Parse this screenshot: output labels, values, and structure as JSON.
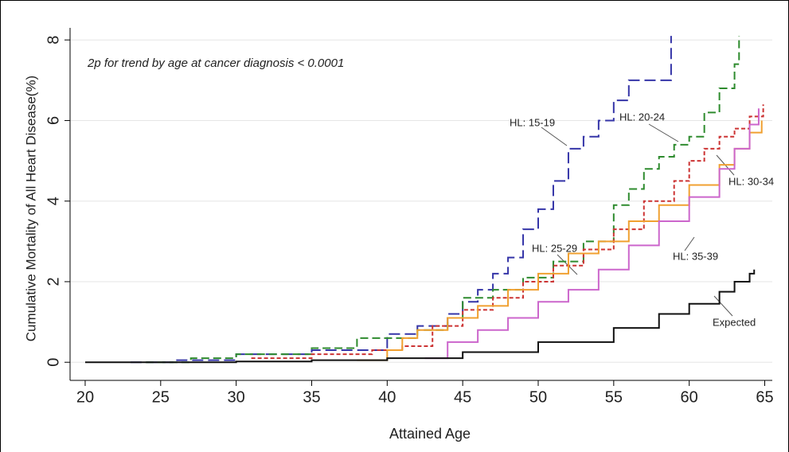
{
  "chart_data": {
    "type": "step",
    "y_label": "Cumulative Mortality of All Heart Disease(%)",
    "x_label": "Attained Age",
    "annotation": "2p for trend by age at cancer diagnosis < 0.0001",
    "xlim": [
      19,
      65.5
    ],
    "ylim": [
      -0.45,
      8.3
    ],
    "xticks": [
      20,
      25,
      30,
      35,
      40,
      45,
      50,
      55,
      60,
      65
    ],
    "yticks": [
      0,
      2,
      4,
      6,
      8
    ],
    "grid": true,
    "series": [
      {
        "name": "HL: 15-19",
        "color": "#3535a8",
        "dash": "14 6",
        "x": [
          23,
          26,
          30,
          35,
          40,
          42,
          44,
          45,
          46,
          47,
          48,
          49,
          50,
          51,
          52,
          53,
          54,
          55,
          56,
          58.8
        ],
        "values": [
          0,
          0.05,
          0.2,
          0.3,
          0.7,
          0.9,
          1.2,
          1.5,
          1.8,
          2.2,
          2.6,
          3.3,
          3.8,
          4.5,
          5.3,
          5.6,
          6.0,
          6.5,
          7.0,
          8.1
        ]
      },
      {
        "name": "HL: 20-24",
        "color": "#2e8b2e",
        "dash": "10 5",
        "x": [
          24,
          27,
          30,
          35,
          38,
          42,
          44,
          45,
          47,
          49,
          51,
          53,
          55,
          56,
          57,
          58,
          59,
          60,
          61,
          62,
          63,
          63.3
        ],
        "values": [
          0,
          0.1,
          0.2,
          0.35,
          0.6,
          0.8,
          1.1,
          1.6,
          1.8,
          2.1,
          2.5,
          3.0,
          3.9,
          4.3,
          4.8,
          5.1,
          5.4,
          5.6,
          6.2,
          6.8,
          7.4,
          8.1
        ]
      },
      {
        "name": "HL: 25-29",
        "color": "#cc3333",
        "dash": "5 3",
        "x": [
          31,
          35,
          39,
          41,
          43,
          45,
          47,
          49,
          51,
          53,
          55,
          57,
          59,
          60,
          61,
          62,
          63,
          64,
          64.9
        ],
        "values": [
          0.1,
          0.2,
          0.3,
          0.4,
          0.9,
          1.3,
          1.6,
          2.0,
          2.4,
          2.8,
          3.3,
          4.0,
          4.5,
          5.0,
          5.3,
          5.6,
          5.8,
          6.1,
          6.4
        ]
      },
      {
        "name": "HL: 30-34",
        "color": "#f0a030",
        "dash": "none",
        "x": [
          38,
          40,
          41,
          42,
          44,
          46,
          48,
          50,
          52,
          54,
          56,
          58,
          60,
          62,
          63,
          64,
          64.8
        ],
        "values": [
          0.05,
          0.3,
          0.6,
          0.8,
          1.1,
          1.4,
          1.8,
          2.2,
          2.7,
          3.0,
          3.5,
          3.9,
          4.4,
          4.9,
          5.3,
          5.7,
          6.0
        ]
      },
      {
        "name": "HL: 35-39",
        "color": "#cc66cc",
        "dash": "none",
        "x": [
          42.5,
          44,
          46,
          48,
          50,
          52,
          54,
          56,
          58,
          60,
          62,
          63,
          64,
          64.6
        ],
        "values": [
          0.1,
          0.5,
          0.8,
          1.1,
          1.5,
          1.8,
          2.3,
          2.9,
          3.5,
          4.1,
          4.8,
          5.3,
          5.9,
          6.3
        ]
      },
      {
        "name": "Expected",
        "color": "#111111",
        "dash": "none",
        "x": [
          20,
          30,
          35,
          40,
          45,
          50,
          55,
          58,
          60,
          62,
          63,
          64,
          64.3
        ],
        "values": [
          0,
          0.02,
          0.05,
          0.1,
          0.25,
          0.5,
          0.85,
          1.2,
          1.45,
          1.75,
          2.0,
          2.2,
          2.3
        ]
      }
    ]
  }
}
